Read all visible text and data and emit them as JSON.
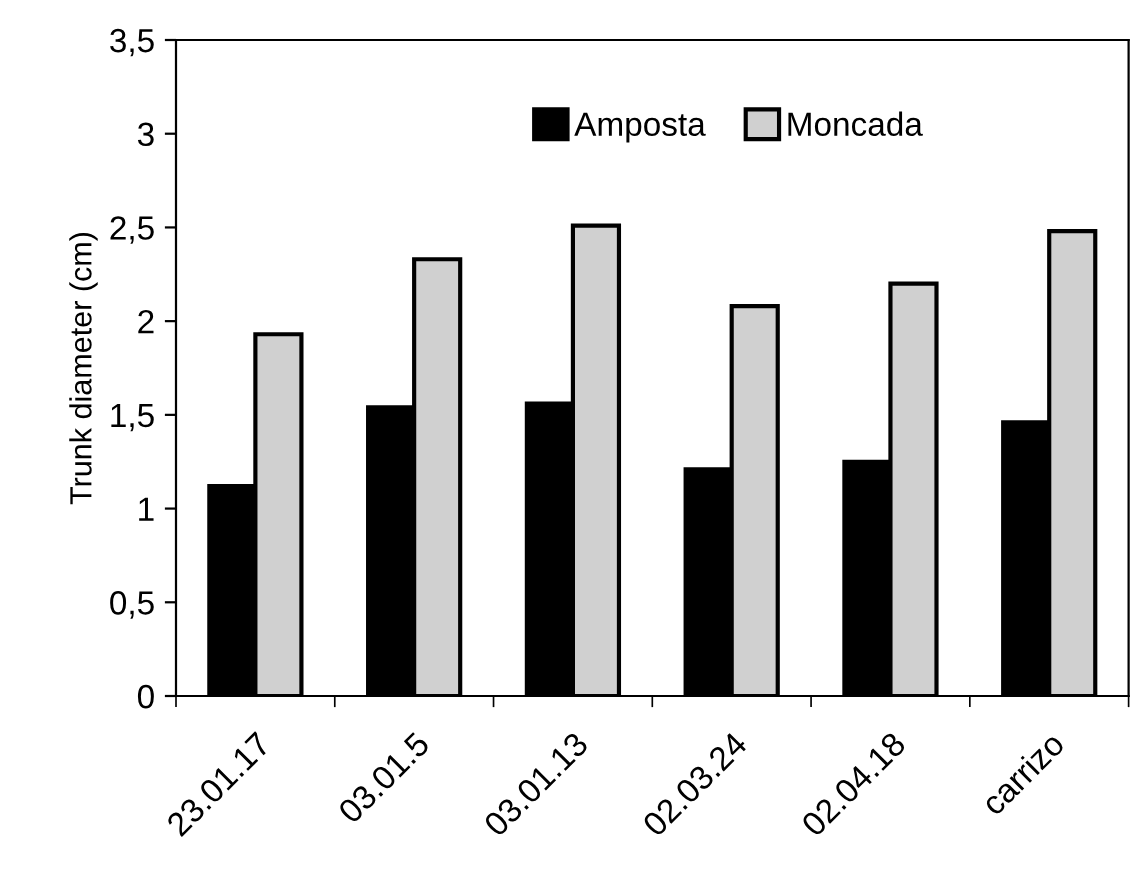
{
  "chart_data": {
    "type": "bar",
    "ylabel": "Trunk diameter (cm)",
    "categories": [
      "23.01.17",
      "03.01.5",
      "03.01.13",
      "02.03.24",
      "02.04.18",
      "carrizo"
    ],
    "series": [
      {
        "name": "Amposta",
        "color": "#000000",
        "values": [
          1.12,
          1.54,
          1.56,
          1.21,
          1.25,
          1.46
        ]
      },
      {
        "name": "Moncada",
        "color": "#d0d0d0",
        "values": [
          1.93,
          2.33,
          2.51,
          2.08,
          2.2,
          2.48
        ]
      }
    ],
    "ylim": [
      0,
      3.5
    ],
    "yticks": [
      0,
      {
        "value": 0.5,
        "label": "0,5"
      },
      1,
      {
        "value": 1.5,
        "label": "1,5"
      },
      2,
      {
        "value": 2.5,
        "label": "2,5"
      },
      3,
      {
        "value": 3.5,
        "label": "3,5"
      }
    ],
    "grid": false,
    "legend": "top"
  }
}
